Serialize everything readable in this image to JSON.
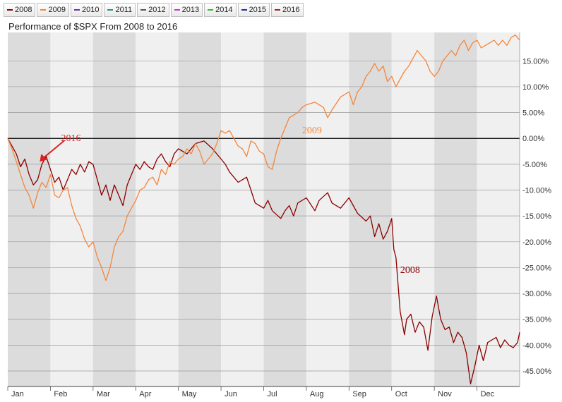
{
  "legend": [
    {
      "label": "2008",
      "color": "#8b0000"
    },
    {
      "label": "2009",
      "color": "#f4863b"
    },
    {
      "label": "2010",
      "color": "#7030a0"
    },
    {
      "label": "2011",
      "color": "#2e8b8b"
    },
    {
      "label": "2012",
      "color": "#555555"
    },
    {
      "label": "2013",
      "color": "#cc33cc"
    },
    {
      "label": "2014",
      "color": "#33bb33"
    },
    {
      "label": "2015",
      "color": "#1f2f8f"
    },
    {
      "label": "2016",
      "color": "#b01c1c"
    }
  ],
  "chart_data": {
    "type": "line",
    "title": "Performance of $SPX From 2008 to 2016",
    "x_categories": [
      "Jan",
      "Feb",
      "Mar",
      "Apr",
      "May",
      "Jun",
      "Jul",
      "Aug",
      "Sep",
      "Oct",
      "Nov",
      "Dec"
    ],
    "y_ticks": [
      15,
      10,
      5,
      0,
      -5,
      -10,
      -15,
      -20,
      -25,
      -30,
      -35,
      -40,
      -45
    ],
    "y_tick_labels": [
      "15.00%",
      "10.00%",
      "5.00%",
      "0.00%",
      "-5.00%",
      "-10.00%",
      "-15.00%",
      "-20.00%",
      "-25.00%",
      "-30.00%",
      "-35.00%",
      "-40.00%",
      "-45.00%"
    ],
    "ylim": [
      -48,
      20.5
    ],
    "xlim": [
      0,
      12
    ],
    "grid": true,
    "series": [
      {
        "name": "2008",
        "color": "#8b0000",
        "points": [
          [
            0,
            0
          ],
          [
            0.1,
            -1.5
          ],
          [
            0.2,
            -3
          ],
          [
            0.3,
            -5.5
          ],
          [
            0.4,
            -4
          ],
          [
            0.5,
            -7
          ],
          [
            0.6,
            -9
          ],
          [
            0.7,
            -8
          ],
          [
            0.8,
            -5
          ],
          [
            0.9,
            -3.5
          ],
          [
            1,
            -6
          ],
          [
            1.1,
            -8.5
          ],
          [
            1.2,
            -7.5
          ],
          [
            1.3,
            -10
          ],
          [
            1.4,
            -8
          ],
          [
            1.5,
            -6
          ],
          [
            1.6,
            -7
          ],
          [
            1.7,
            -5
          ],
          [
            1.8,
            -6.5
          ],
          [
            1.9,
            -4.5
          ],
          [
            2,
            -5
          ],
          [
            2.1,
            -8
          ],
          [
            2.2,
            -11
          ],
          [
            2.3,
            -9
          ],
          [
            2.4,
            -12
          ],
          [
            2.5,
            -9
          ],
          [
            2.6,
            -11
          ],
          [
            2.7,
            -13
          ],
          [
            2.8,
            -9
          ],
          [
            2.9,
            -7
          ],
          [
            3,
            -5
          ],
          [
            3.1,
            -6
          ],
          [
            3.2,
            -4.5
          ],
          [
            3.3,
            -5.5
          ],
          [
            3.4,
            -6
          ],
          [
            3.5,
            -4
          ],
          [
            3.6,
            -3
          ],
          [
            3.7,
            -4.5
          ],
          [
            3.8,
            -5.5
          ],
          [
            3.9,
            -3
          ],
          [
            4,
            -2
          ],
          [
            4.2,
            -3
          ],
          [
            4.4,
            -1
          ],
          [
            4.6,
            -0.5
          ],
          [
            4.8,
            -2
          ],
          [
            5,
            -4
          ],
          [
            5.1,
            -5
          ],
          [
            5.2,
            -6.5
          ],
          [
            5.4,
            -8.5
          ],
          [
            5.6,
            -7.5
          ],
          [
            5.7,
            -10
          ],
          [
            5.8,
            -12.5
          ],
          [
            6,
            -13.5
          ],
          [
            6.1,
            -12
          ],
          [
            6.2,
            -14
          ],
          [
            6.4,
            -15.5
          ],
          [
            6.5,
            -14
          ],
          [
            6.6,
            -13
          ],
          [
            6.7,
            -15
          ],
          [
            6.8,
            -12.5
          ],
          [
            7,
            -11.5
          ],
          [
            7.2,
            -14
          ],
          [
            7.3,
            -12
          ],
          [
            7.5,
            -10.5
          ],
          [
            7.6,
            -12.5
          ],
          [
            7.8,
            -13.5
          ],
          [
            8,
            -11.5
          ],
          [
            8.2,
            -14.5
          ],
          [
            8.4,
            -16
          ],
          [
            8.5,
            -15
          ],
          [
            8.6,
            -19
          ],
          [
            8.7,
            -16.5
          ],
          [
            8.8,
            -19.5
          ],
          [
            8.9,
            -18
          ],
          [
            9,
            -15.5
          ],
          [
            9.05,
            -21.5
          ],
          [
            9.1,
            -23
          ],
          [
            9.2,
            -33.5
          ],
          [
            9.3,
            -38
          ],
          [
            9.35,
            -35
          ],
          [
            9.45,
            -34
          ],
          [
            9.55,
            -37.5
          ],
          [
            9.65,
            -35.5
          ],
          [
            9.75,
            -36.5
          ],
          [
            9.85,
            -41
          ],
          [
            9.95,
            -34.5
          ],
          [
            10.05,
            -30.5
          ],
          [
            10.15,
            -35
          ],
          [
            10.25,
            -37
          ],
          [
            10.35,
            -36.5
          ],
          [
            10.45,
            -39.5
          ],
          [
            10.55,
            -37.5
          ],
          [
            10.65,
            -38.5
          ],
          [
            10.75,
            -41.5
          ],
          [
            10.85,
            -47.5
          ],
          [
            10.95,
            -44
          ],
          [
            11.05,
            -40
          ],
          [
            11.15,
            -43
          ],
          [
            11.25,
            -39.5
          ],
          [
            11.35,
            -39
          ],
          [
            11.45,
            -38.5
          ],
          [
            11.55,
            -40.5
          ],
          [
            11.65,
            -39
          ],
          [
            11.75,
            -40
          ],
          [
            11.85,
            -40.5
          ],
          [
            11.95,
            -39.5
          ],
          [
            12,
            -37.5
          ]
        ]
      },
      {
        "name": "2009",
        "color": "#f4863b",
        "points": [
          [
            0,
            0
          ],
          [
            0.1,
            -2
          ],
          [
            0.2,
            -4.5
          ],
          [
            0.3,
            -7
          ],
          [
            0.4,
            -9.5
          ],
          [
            0.5,
            -11
          ],
          [
            0.6,
            -13.5
          ],
          [
            0.7,
            -10.5
          ],
          [
            0.8,
            -8.5
          ],
          [
            0.9,
            -9.5
          ],
          [
            1,
            -7
          ],
          [
            1.1,
            -11
          ],
          [
            1.2,
            -11.5
          ],
          [
            1.3,
            -10
          ],
          [
            1.4,
            -9.5
          ],
          [
            1.5,
            -13
          ],
          [
            1.6,
            -15.5
          ],
          [
            1.7,
            -17
          ],
          [
            1.8,
            -19.5
          ],
          [
            1.9,
            -21
          ],
          [
            2,
            -20
          ],
          [
            2.1,
            -23
          ],
          [
            2.2,
            -25
          ],
          [
            2.3,
            -27.5
          ],
          [
            2.4,
            -25
          ],
          [
            2.5,
            -21
          ],
          [
            2.6,
            -19
          ],
          [
            2.7,
            -18
          ],
          [
            2.8,
            -15
          ],
          [
            2.9,
            -13.5
          ],
          [
            3,
            -12
          ],
          [
            3.1,
            -10
          ],
          [
            3.2,
            -9.5
          ],
          [
            3.3,
            -8
          ],
          [
            3.4,
            -7.5
          ],
          [
            3.5,
            -9
          ],
          [
            3.6,
            -6
          ],
          [
            3.7,
            -7
          ],
          [
            3.8,
            -4.5
          ],
          [
            3.9,
            -5
          ],
          [
            4,
            -4
          ],
          [
            4.1,
            -3.5
          ],
          [
            4.2,
            -2
          ],
          [
            4.3,
            -3
          ],
          [
            4.4,
            -1
          ],
          [
            4.5,
            -2.5
          ],
          [
            4.6,
            -5
          ],
          [
            4.7,
            -4
          ],
          [
            4.8,
            -3
          ],
          [
            4.9,
            -1
          ],
          [
            5,
            1.5
          ],
          [
            5.1,
            1
          ],
          [
            5.2,
            1.5
          ],
          [
            5.3,
            0
          ],
          [
            5.4,
            -1.5
          ],
          [
            5.5,
            -2
          ],
          [
            5.6,
            -3.5
          ],
          [
            5.7,
            -0.5
          ],
          [
            5.8,
            -1
          ],
          [
            5.9,
            -2.5
          ],
          [
            6,
            -3
          ],
          [
            6.1,
            -5.5
          ],
          [
            6.2,
            -6
          ],
          [
            6.3,
            -2.5
          ],
          [
            6.4,
            0
          ],
          [
            6.5,
            2
          ],
          [
            6.6,
            4
          ],
          [
            6.7,
            4.5
          ],
          [
            6.8,
            5
          ],
          [
            6.9,
            6
          ],
          [
            7,
            6.5
          ],
          [
            7.2,
            7
          ],
          [
            7.4,
            6
          ],
          [
            7.5,
            4
          ],
          [
            7.6,
            5.5
          ],
          [
            7.8,
            8
          ],
          [
            8,
            9
          ],
          [
            8.1,
            6.5
          ],
          [
            8.2,
            9
          ],
          [
            8.3,
            10
          ],
          [
            8.4,
            12
          ],
          [
            8.5,
            13
          ],
          [
            8.6,
            14.5
          ],
          [
            8.7,
            13
          ],
          [
            8.8,
            14
          ],
          [
            8.9,
            11
          ],
          [
            9,
            12
          ],
          [
            9.1,
            10
          ],
          [
            9.2,
            11.5
          ],
          [
            9.3,
            13
          ],
          [
            9.4,
            14
          ],
          [
            9.5,
            15.5
          ],
          [
            9.6,
            17
          ],
          [
            9.7,
            16
          ],
          [
            9.8,
            15
          ],
          [
            9.9,
            13
          ],
          [
            10,
            12
          ],
          [
            10.1,
            13
          ],
          [
            10.2,
            15
          ],
          [
            10.3,
            16
          ],
          [
            10.4,
            17
          ],
          [
            10.5,
            16
          ],
          [
            10.6,
            18
          ],
          [
            10.7,
            19
          ],
          [
            10.8,
            17
          ],
          [
            10.9,
            18.5
          ],
          [
            11,
            19
          ],
          [
            11.1,
            17.5
          ],
          [
            11.2,
            18
          ],
          [
            11.3,
            18.5
          ],
          [
            11.4,
            19
          ],
          [
            11.5,
            18
          ],
          [
            11.6,
            19
          ],
          [
            11.7,
            18
          ],
          [
            11.8,
            19.5
          ],
          [
            11.9,
            20
          ],
          [
            12,
            19
          ]
        ]
      }
    ],
    "annotations": [
      {
        "text": "2016",
        "color": "#e02020",
        "x": 1.25,
        "y": -0.5
      },
      {
        "text": "2009",
        "color": "#f4863b",
        "x": 6.9,
        "y": 1
      },
      {
        "text": "2008",
        "color": "#8b0000",
        "x": 9.2,
        "y": -26
      }
    ],
    "arrow": {
      "from": [
        1.33,
        -0.4
      ],
      "to": [
        0.75,
        -4.5
      ],
      "color": "#e02020"
    }
  }
}
